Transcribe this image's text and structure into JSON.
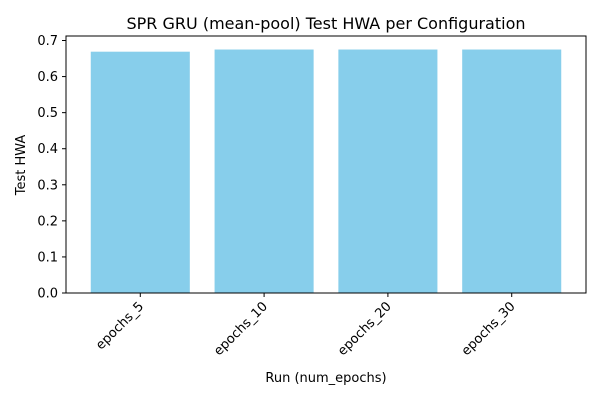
{
  "chart_data": {
    "type": "bar",
    "title": "SPR GRU (mean-pool) Test HWA per Configuration",
    "xlabel": "Run (num_epochs)",
    "ylabel": "Test HWA",
    "categories": [
      "epochs_5",
      "epochs_10",
      "epochs_20",
      "epochs_30"
    ],
    "values": [
      0.669,
      0.675,
      0.675,
      0.675
    ],
    "ylim": [
      0,
      0.7125
    ],
    "yticks": [
      0.0,
      0.1,
      0.2,
      0.3,
      0.4,
      0.5,
      0.6,
      0.7
    ],
    "ytick_labels": [
      "0.0",
      "0.1",
      "0.2",
      "0.3",
      "0.4",
      "0.5",
      "0.6",
      "0.7"
    ],
    "bar_color": "#87ceeb",
    "grid": false,
    "legend": false
  }
}
